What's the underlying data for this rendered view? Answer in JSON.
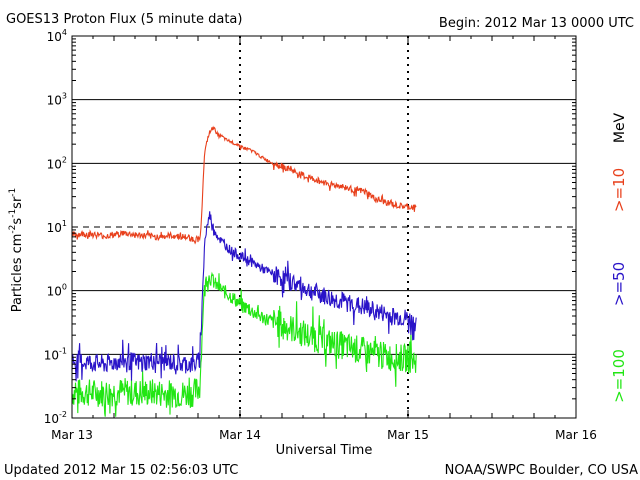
{
  "chart_data": {
    "type": "line",
    "title": "GOES13 Proton Flux (5 minute data)",
    "begin_label": "Begin: 2012 Mar 13 0000 UTC",
    "xlabel": "Universal Time",
    "ylabel": {
      "base": "Particles cm",
      "exp1": "-2",
      "s": "s",
      "exp2": "-1",
      "sr": "sr",
      "exp3": "-1"
    },
    "y_scale": "log",
    "ylim": [
      0.01,
      10000
    ],
    "y_ticks": [
      {
        "value": 0.01,
        "base": "10",
        "exp": "-2"
      },
      {
        "value": 0.1,
        "base": "10",
        "exp": "-1"
      },
      {
        "value": 1,
        "base": "10",
        "exp": "0"
      },
      {
        "value": 10,
        "base": "10",
        "exp": "1"
      },
      {
        "value": 100,
        "base": "10",
        "exp": "2"
      },
      {
        "value": 1000,
        "base": "10",
        "exp": "3"
      },
      {
        "value": 10000,
        "base": "10",
        "exp": "4"
      }
    ],
    "xlim_days": [
      0,
      3
    ],
    "x_ticks": [
      {
        "day": 0,
        "label": "Mar 13"
      },
      {
        "day": 1,
        "label": "Mar 14"
      },
      {
        "day": 2,
        "label": "Mar 15"
      },
      {
        "day": 3,
        "label": "Mar 16"
      }
    ],
    "threshold_line": 10,
    "series": [
      {
        "name": ">=10 MeV",
        "legend": ">=10",
        "unit": "MeV",
        "color": "#e8401c",
        "points": [
          [
            0,
            7.5
          ],
          [
            0.1,
            7.8
          ],
          [
            0.2,
            7.2
          ],
          [
            0.3,
            8.0
          ],
          [
            0.4,
            7.4
          ],
          [
            0.5,
            7.0
          ],
          [
            0.6,
            7.3
          ],
          [
            0.7,
            6.8
          ],
          [
            0.72,
            6.4
          ],
          [
            0.76,
            6.5
          ],
          [
            0.77,
            12
          ],
          [
            0.78,
            50
          ],
          [
            0.79,
            150
          ],
          [
            0.81,
            260
          ],
          [
            0.84,
            380
          ],
          [
            0.86,
            300
          ],
          [
            0.88,
            280
          ],
          [
            0.92,
            230
          ],
          [
            0.96,
            210
          ],
          [
            1.0,
            190
          ],
          [
            1.03,
            170
          ],
          [
            1.06,
            165
          ],
          [
            1.1,
            140
          ],
          [
            1.15,
            115
          ],
          [
            1.2,
            100
          ],
          [
            1.25,
            90
          ],
          [
            1.3,
            80
          ],
          [
            1.35,
            68
          ],
          [
            1.4,
            60
          ],
          [
            1.45,
            55
          ],
          [
            1.5,
            50
          ],
          [
            1.55,
            46
          ],
          [
            1.6,
            44
          ],
          [
            1.65,
            40
          ],
          [
            1.7,
            38
          ],
          [
            1.75,
            35
          ],
          [
            1.8,
            28
          ],
          [
            1.85,
            25
          ],
          [
            1.88,
            24
          ],
          [
            1.92,
            22
          ],
          [
            1.96,
            21
          ],
          [
            2.0,
            20.5
          ],
          [
            2.05,
            20
          ]
        ],
        "noise": 0.1
      },
      {
        "name": ">=50 MeV",
        "legend": ">=50",
        "color": "#2a14c8",
        "points": [
          [
            0,
            0.08
          ],
          [
            0.1,
            0.075
          ],
          [
            0.2,
            0.07
          ],
          [
            0.3,
            0.08
          ],
          [
            0.4,
            0.075
          ],
          [
            0.5,
            0.08
          ],
          [
            0.6,
            0.075
          ],
          [
            0.7,
            0.07
          ],
          [
            0.73,
            0.07
          ],
          [
            0.76,
            0.08
          ],
          [
            0.77,
            0.3
          ],
          [
            0.78,
            1.5
          ],
          [
            0.79,
            6
          ],
          [
            0.81,
            12
          ],
          [
            0.82,
            16
          ],
          [
            0.84,
            10
          ],
          [
            0.87,
            7
          ],
          [
            0.9,
            5.5
          ],
          [
            0.95,
            4.2
          ],
          [
            1.0,
            3.5
          ],
          [
            1.05,
            3.0
          ],
          [
            1.1,
            2.5
          ],
          [
            1.15,
            2.1
          ],
          [
            1.2,
            1.8
          ],
          [
            1.3,
            1.4
          ],
          [
            1.4,
            1.05
          ],
          [
            1.5,
            0.82
          ],
          [
            1.6,
            0.68
          ],
          [
            1.7,
            0.58
          ],
          [
            1.8,
            0.48
          ],
          [
            1.9,
            0.4
          ],
          [
            2.0,
            0.36
          ],
          [
            2.05,
            0.3
          ]
        ],
        "noise": 0.3
      },
      {
        "name": ">=100 MeV",
        "legend": ">=100",
        "color": "#22e614",
        "points": [
          [
            0,
            0.025
          ],
          [
            0.1,
            0.025
          ],
          [
            0.2,
            0.025
          ],
          [
            0.3,
            0.026
          ],
          [
            0.4,
            0.025
          ],
          [
            0.5,
            0.025
          ],
          [
            0.6,
            0.024
          ],
          [
            0.7,
            0.024
          ],
          [
            0.73,
            0.025
          ],
          [
            0.76,
            0.03
          ],
          [
            0.77,
            0.1
          ],
          [
            0.78,
            0.5
          ],
          [
            0.79,
            1.2
          ],
          [
            0.81,
            1.7
          ],
          [
            0.83,
            1.5
          ],
          [
            0.86,
            1.2
          ],
          [
            0.9,
            1.0
          ],
          [
            0.95,
            0.8
          ],
          [
            1.0,
            0.62
          ],
          [
            1.05,
            0.52
          ],
          [
            1.1,
            0.42
          ],
          [
            1.2,
            0.32
          ],
          [
            1.3,
            0.26
          ],
          [
            1.4,
            0.2
          ],
          [
            1.5,
            0.16
          ],
          [
            1.6,
            0.14
          ],
          [
            1.7,
            0.12
          ],
          [
            1.8,
            0.1
          ],
          [
            1.9,
            0.09
          ],
          [
            2.0,
            0.085
          ],
          [
            2.05,
            0.08
          ]
        ],
        "noise": 0.45
      }
    ],
    "legend_unit": "MeV"
  },
  "footer": {
    "updated": "Updated 2012 Mar 15 02:56:03 UTC",
    "source": "NOAA/SWPC Boulder, CO USA"
  }
}
